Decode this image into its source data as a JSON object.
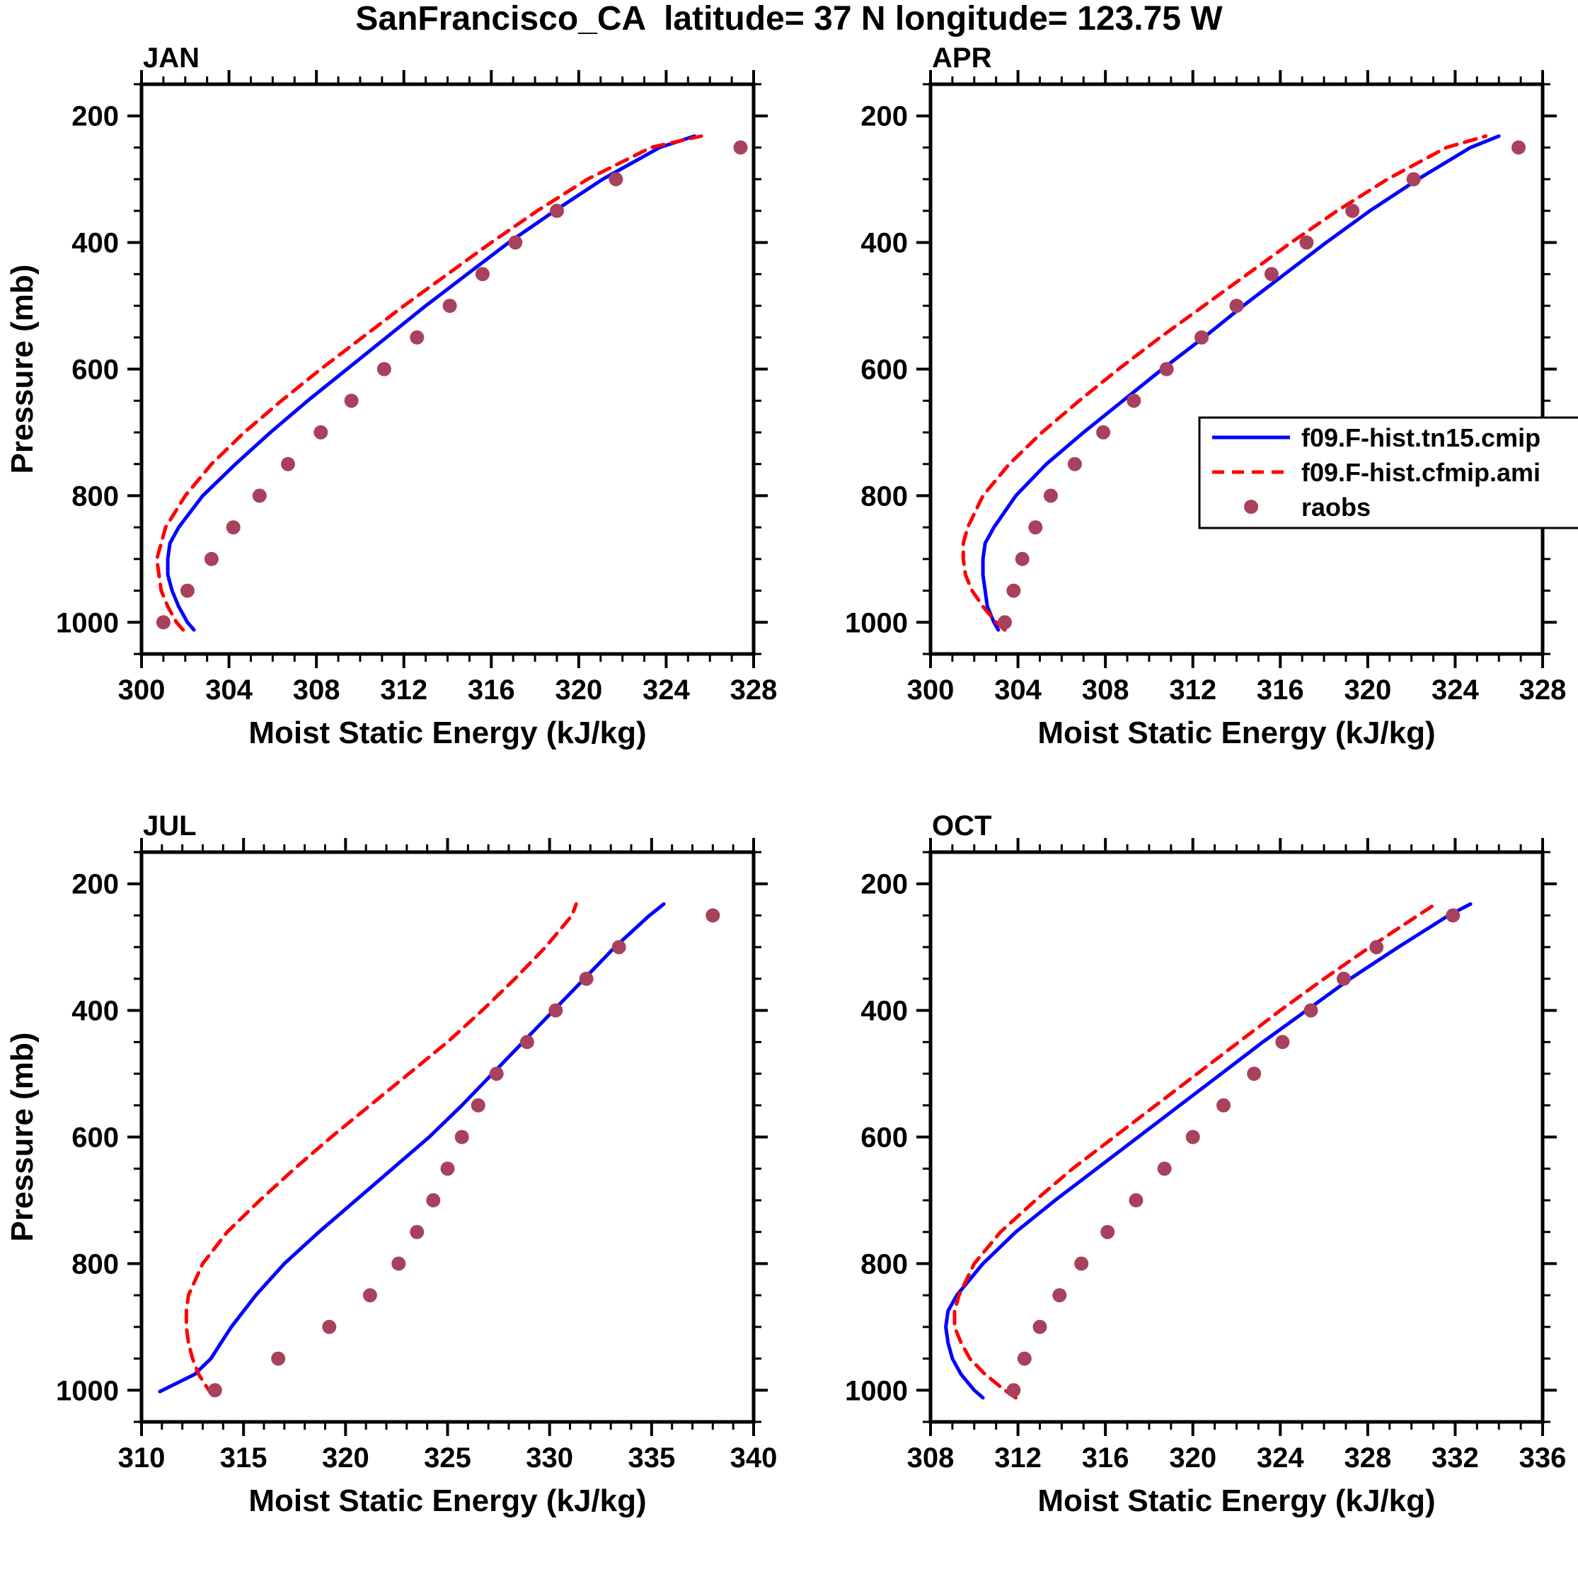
{
  "title": "SanFrancisco_CA  latitude= 37 N longitude= 123.75 W",
  "ylabel": "Pressure (mb)",
  "xlabel": "Moist Static Energy (kJ/kg)",
  "colors": {
    "model_cmip_line": "#0000ff",
    "model_cfmip_line": "#ff0000",
    "raobs_dot": "#a8415b",
    "frame": "#000000"
  },
  "legend": {
    "position": "inside APR panel, middle right, clipped at right edge",
    "entries": [
      {
        "label": "f09.F-hist.tn15.cmip",
        "style": "line",
        "dashed": false,
        "color": "#0000ff"
      },
      {
        "label": "f09.F-hist.cfmip.ami",
        "style": "line",
        "dashed": true,
        "color": "#ff0000"
      },
      {
        "label": "raobs",
        "style": "dot",
        "dashed": false,
        "color": "#a8415b"
      }
    ]
  },
  "chart_data": [
    {
      "type": "line",
      "month": "JAN",
      "xlabel": "Moist Static Energy (kJ/kg)",
      "ylabel": "Pressure (mb)",
      "xlim": [
        300,
        328
      ],
      "xtick_step": 4,
      "x_minor_step": 1,
      "plim": [
        150,
        1050
      ],
      "yticks": [
        200,
        400,
        600,
        800,
        1000
      ],
      "y_minor_step": 50,
      "y_axis_inverted_pressure": true,
      "show_ylabel": true,
      "has_legend": false,
      "series": [
        {
          "name": "f09.F-hist.tn15.cmip",
          "color": "#0000ff",
          "dashed": false,
          "pressure": [
            1012,
            1000,
            975,
            950,
            925,
            900,
            875,
            850,
            800,
            750,
            700,
            650,
            600,
            550,
            500,
            450,
            400,
            350,
            300,
            250,
            232
          ],
          "values": [
            302.4,
            302.1,
            301.7,
            301.4,
            301.2,
            301.2,
            301.3,
            301.7,
            302.8,
            304.3,
            305.9,
            307.6,
            309.4,
            311.2,
            313.0,
            314.9,
            316.8,
            318.9,
            321.1,
            323.7,
            325.3
          ]
        },
        {
          "name": "f09.F-hist.cfmip.ami",
          "color": "#ff0000",
          "dashed": true,
          "pressure": [
            1012,
            1000,
            975,
            950,
            925,
            900,
            875,
            850,
            800,
            750,
            700,
            650,
            600,
            550,
            500,
            450,
            400,
            350,
            300,
            250,
            232
          ],
          "values": [
            301.9,
            301.6,
            301.2,
            300.9,
            300.8,
            300.7,
            300.9,
            301.1,
            302.0,
            303.2,
            304.7,
            306.4,
            308.2,
            310.1,
            312.0,
            314.0,
            316.0,
            318.1,
            320.4,
            323.3,
            325.6
          ]
        }
      ],
      "raobs": {
        "name": "raobs",
        "color": "#a8415b",
        "pressure": [
          1000,
          950,
          900,
          850,
          800,
          750,
          700,
          650,
          600,
          550,
          500,
          450,
          400,
          350,
          300,
          250
        ],
        "values": [
          301.0,
          302.1,
          303.2,
          304.2,
          305.4,
          306.7,
          308.2,
          309.6,
          311.1,
          312.6,
          314.1,
          315.6,
          317.1,
          319.0,
          321.7,
          327.4
        ]
      }
    },
    {
      "type": "line",
      "month": "APR",
      "xlabel": "Moist Static Energy (kJ/kg)",
      "ylabel": "Pressure (mb)",
      "xlim": [
        300,
        328
      ],
      "xtick_step": 4,
      "x_minor_step": 1,
      "plim": [
        150,
        1050
      ],
      "yticks": [
        200,
        400,
        600,
        800,
        1000
      ],
      "y_minor_step": 50,
      "y_axis_inverted_pressure": true,
      "show_ylabel": false,
      "has_legend": true,
      "series": [
        {
          "name": "f09.F-hist.tn15.cmip",
          "color": "#0000ff",
          "dashed": false,
          "pressure": [
            1012,
            1000,
            975,
            950,
            925,
            900,
            875,
            850,
            800,
            750,
            700,
            650,
            600,
            550,
            500,
            450,
            400,
            350,
            300,
            250,
            232
          ],
          "values": [
            303.1,
            302.9,
            302.6,
            302.5,
            302.4,
            302.4,
            302.5,
            302.9,
            303.9,
            305.3,
            307.0,
            308.8,
            310.6,
            312.5,
            314.3,
            316.2,
            318.1,
            320.1,
            322.3,
            324.7,
            326.0
          ]
        },
        {
          "name": "f09.F-hist.cfmip.ami",
          "color": "#ff0000",
          "dashed": true,
          "pressure": [
            1012,
            1000,
            975,
            950,
            925,
            900,
            875,
            850,
            800,
            750,
            700,
            650,
            600,
            550,
            500,
            450,
            400,
            350,
            300,
            250,
            232
          ],
          "values": [
            303.4,
            303.0,
            302.4,
            301.9,
            301.6,
            301.5,
            301.5,
            301.7,
            302.4,
            303.6,
            305.1,
            306.8,
            308.6,
            310.5,
            312.5,
            314.5,
            316.5,
            318.6,
            320.9,
            323.6,
            325.4
          ]
        }
      ],
      "raobs": {
        "name": "raobs",
        "color": "#a8415b",
        "pressure": [
          1000,
          950,
          900,
          850,
          800,
          750,
          700,
          650,
          600,
          550,
          500,
          450,
          400,
          350,
          300,
          250
        ],
        "values": [
          303.4,
          303.8,
          304.2,
          304.8,
          305.5,
          306.6,
          307.9,
          309.3,
          310.8,
          312.4,
          314.0,
          315.6,
          317.2,
          319.3,
          322.1,
          326.9
        ]
      }
    },
    {
      "type": "line",
      "month": "JUL",
      "xlabel": "Moist Static Energy (kJ/kg)",
      "ylabel": "Pressure (mb)",
      "xlim": [
        310,
        340
      ],
      "xtick_step": 5,
      "x_minor_step": 1,
      "plim": [
        150,
        1050
      ],
      "yticks": [
        200,
        400,
        600,
        800,
        1000
      ],
      "y_minor_step": 50,
      "y_axis_inverted_pressure": true,
      "show_ylabel": true,
      "has_legend": false,
      "series": [
        {
          "name": "f09.F-hist.tn15.cmip",
          "color": "#0000ff",
          "dashed": false,
          "pressure": [
            1002,
            975,
            950,
            925,
            900,
            850,
            800,
            750,
            700,
            650,
            600,
            550,
            500,
            450,
            400,
            350,
            300,
            250,
            232
          ],
          "values": [
            310.9,
            312.6,
            313.4,
            313.9,
            314.4,
            315.6,
            317.0,
            318.7,
            320.5,
            322.3,
            324.1,
            325.7,
            327.2,
            328.7,
            330.2,
            331.7,
            333.2,
            334.9,
            335.6
          ]
        },
        {
          "name": "f09.F-hist.cfmip.ami",
          "color": "#ff0000",
          "dashed": true,
          "pressure": [
            1008,
            1000,
            975,
            950,
            925,
            900,
            875,
            850,
            800,
            750,
            700,
            650,
            600,
            550,
            500,
            450,
            400,
            350,
            300,
            250,
            232
          ],
          "values": [
            313.5,
            313.3,
            312.8,
            312.5,
            312.3,
            312.2,
            312.2,
            312.3,
            313.0,
            314.2,
            315.8,
            317.5,
            319.3,
            321.2,
            323.1,
            325.0,
            326.7,
            328.3,
            329.8,
            331.1,
            331.3
          ]
        }
      ],
      "raobs": {
        "name": "raobs",
        "color": "#a8415b",
        "pressure": [
          1000,
          950,
          900,
          850,
          800,
          750,
          700,
          650,
          600,
          550,
          500,
          450,
          400,
          350,
          300,
          250
        ],
        "values": [
          313.6,
          316.7,
          319.2,
          321.2,
          322.6,
          323.5,
          324.3,
          325.0,
          325.7,
          326.5,
          327.4,
          328.9,
          330.3,
          331.8,
          333.4,
          338.0
        ]
      }
    },
    {
      "type": "line",
      "month": "OCT",
      "xlabel": "Moist Static Energy (kJ/kg)",
      "ylabel": "Pressure (mb)",
      "xlim": [
        308,
        336
      ],
      "xtick_step": 4,
      "x_minor_step": 1,
      "plim": [
        150,
        1050
      ],
      "yticks": [
        200,
        400,
        600,
        800,
        1000
      ],
      "y_minor_step": 50,
      "y_axis_inverted_pressure": true,
      "show_ylabel": false,
      "has_legend": false,
      "series": [
        {
          "name": "f09.F-hist.tn15.cmip",
          "color": "#0000ff",
          "dashed": false,
          "pressure": [
            1012,
            1000,
            975,
            950,
            925,
            900,
            875,
            850,
            800,
            750,
            700,
            650,
            600,
            550,
            500,
            450,
            400,
            350,
            300,
            250,
            232
          ],
          "values": [
            310.4,
            310.0,
            309.4,
            309.0,
            308.8,
            308.7,
            308.8,
            309.2,
            310.4,
            311.9,
            313.7,
            315.6,
            317.5,
            319.4,
            321.3,
            323.2,
            325.2,
            327.2,
            329.4,
            331.7,
            332.7
          ]
        },
        {
          "name": "f09.F-hist.cfmip.ami",
          "color": "#ff0000",
          "dashed": true,
          "pressure": [
            1012,
            1000,
            975,
            950,
            925,
            900,
            875,
            850,
            800,
            750,
            700,
            650,
            600,
            550,
            500,
            450,
            400,
            350,
            300,
            250,
            232
          ],
          "values": [
            311.9,
            311.4,
            310.5,
            309.8,
            309.4,
            309.1,
            309.1,
            309.3,
            310.0,
            311.2,
            312.8,
            314.5,
            316.4,
            318.3,
            320.2,
            322.1,
            324.0,
            326.0,
            328.1,
            330.3,
            331.1
          ]
        }
      ],
      "raobs": {
        "name": "raobs",
        "color": "#a8415b",
        "pressure": [
          1000,
          950,
          900,
          850,
          800,
          750,
          700,
          650,
          600,
          550,
          500,
          450,
          400,
          350,
          300,
          250
        ],
        "values": [
          311.8,
          312.3,
          313.0,
          313.9,
          314.9,
          316.1,
          317.4,
          318.7,
          320.0,
          321.4,
          322.8,
          324.1,
          325.4,
          326.9,
          328.4,
          331.9
        ]
      }
    }
  ]
}
